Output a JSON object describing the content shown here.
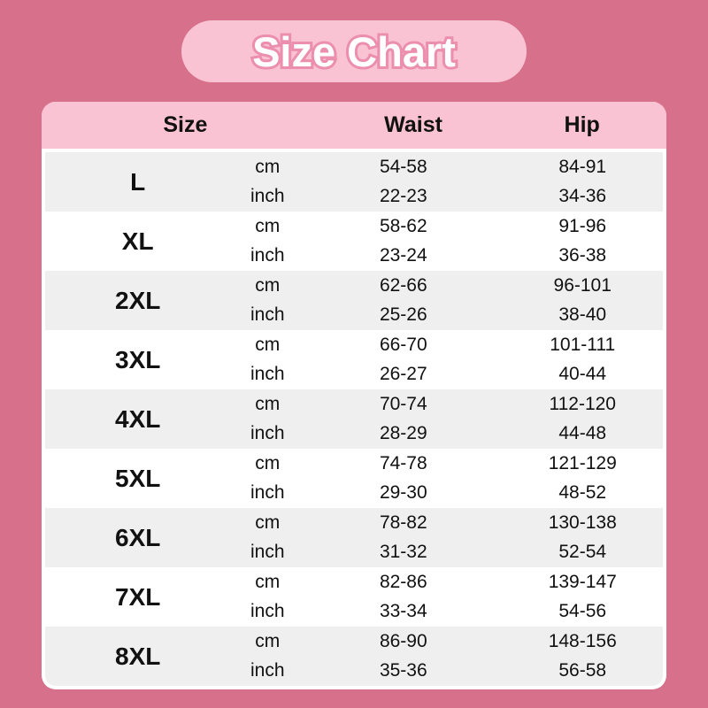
{
  "title": "Size Chart",
  "colors": {
    "page_background": "#d7708b",
    "banner_background": "#f9c3d3",
    "banner_text_fill": "#ffffff",
    "banner_text_outline": "#ec8fae",
    "header_background": "#f9c3d3",
    "row_gray": "#f0eff0",
    "row_white": "#ffffff",
    "text": "#111111"
  },
  "chart_data": {
    "type": "table",
    "title": "Size Chart",
    "headers": {
      "size": "Size",
      "waist": "Waist",
      "hip": "Hip"
    },
    "unit_labels": {
      "cm": "cm",
      "inch": "inch"
    },
    "rows": [
      {
        "size": "L",
        "waist_cm": "54-58",
        "hip_cm": "84-91",
        "waist_inch": "22-23",
        "hip_inch": "34-36"
      },
      {
        "size": "XL",
        "waist_cm": "58-62",
        "hip_cm": "91-96",
        "waist_inch": "23-24",
        "hip_inch": "36-38"
      },
      {
        "size": "2XL",
        "waist_cm": "62-66",
        "hip_cm": "96-101",
        "waist_inch": "25-26",
        "hip_inch": "38-40"
      },
      {
        "size": "3XL",
        "waist_cm": "66-70",
        "hip_cm": "101-111",
        "waist_inch": "26-27",
        "hip_inch": "40-44"
      },
      {
        "size": "4XL",
        "waist_cm": "70-74",
        "hip_cm": "112-120",
        "waist_inch": "28-29",
        "hip_inch": "44-48"
      },
      {
        "size": "5XL",
        "waist_cm": "74-78",
        "hip_cm": "121-129",
        "waist_inch": "29-30",
        "hip_inch": "48-52"
      },
      {
        "size": "6XL",
        "waist_cm": "78-82",
        "hip_cm": "130-138",
        "waist_inch": "31-32",
        "hip_inch": "52-54"
      },
      {
        "size": "7XL",
        "waist_cm": "82-86",
        "hip_cm": "139-147",
        "waist_inch": "33-34",
        "hip_inch": "54-56"
      },
      {
        "size": "8XL",
        "waist_cm": "86-90",
        "hip_cm": "148-156",
        "waist_inch": "35-36",
        "hip_inch": "56-58"
      }
    ]
  }
}
